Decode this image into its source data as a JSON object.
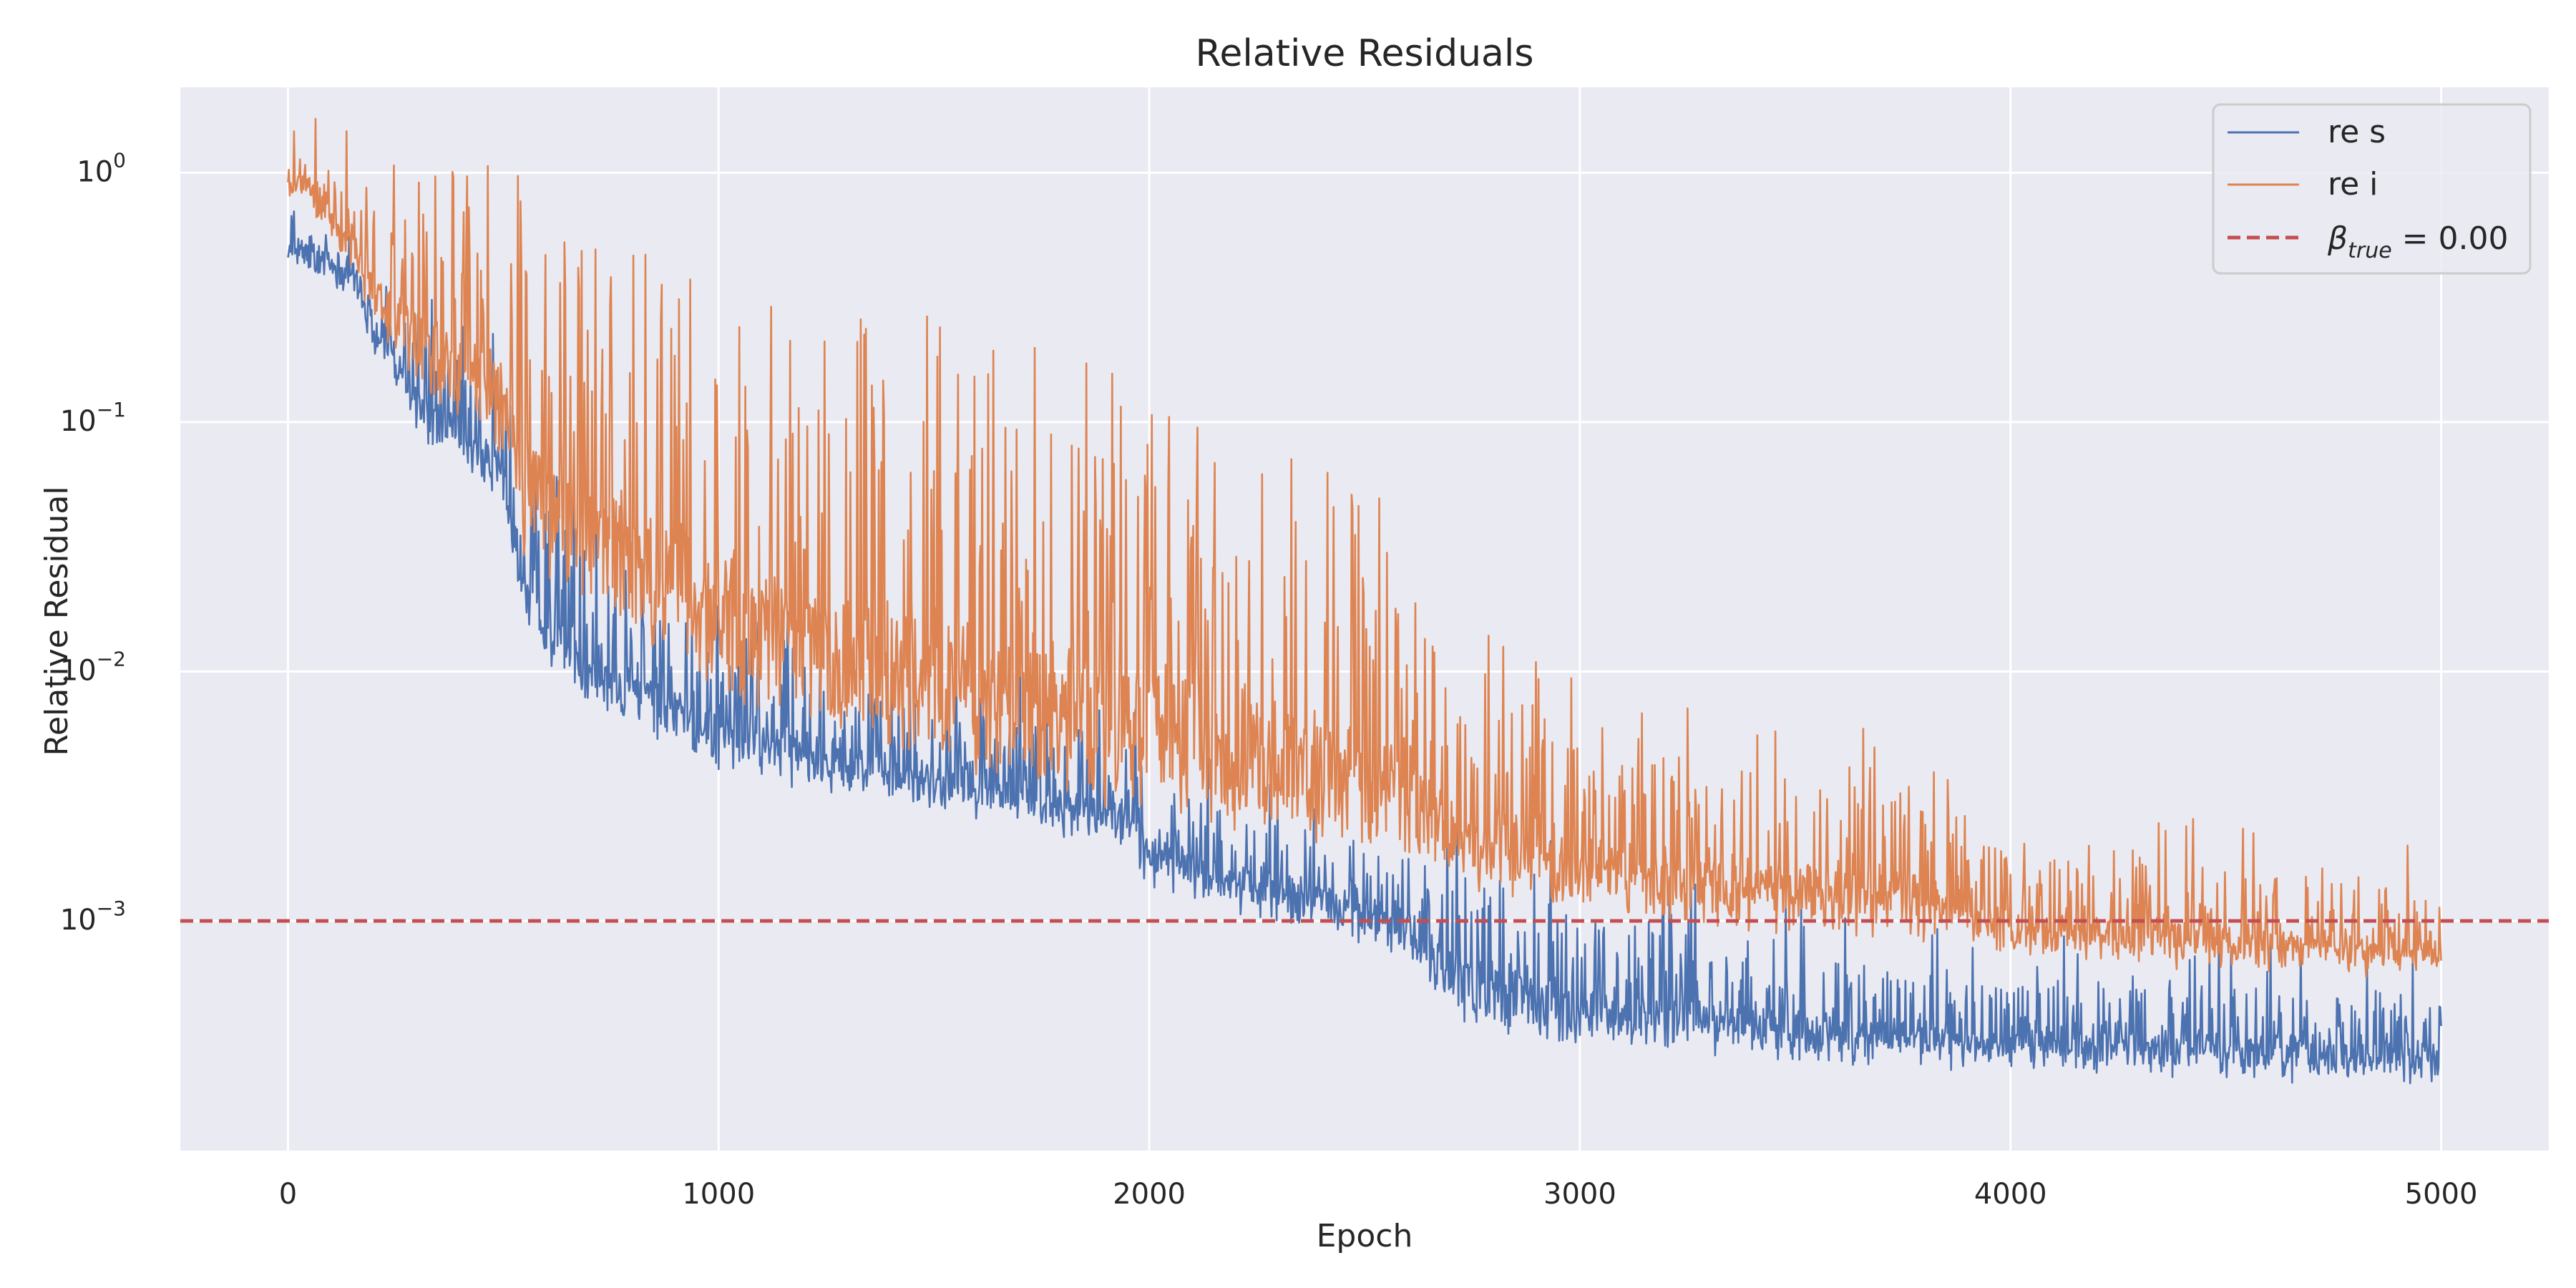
{
  "chart_data": {
    "type": "line",
    "title": "Relative Residuals",
    "xlabel": "Epoch",
    "ylabel": "Relative Residual",
    "yscale": "log",
    "xlim": [
      -250,
      5250
    ],
    "ylim": [
      0.00012,
      2.2
    ],
    "x_ticks": [
      0,
      1000,
      2000,
      3000,
      4000,
      5000
    ],
    "y_ticks": [
      {
        "value": 1,
        "label": "10^0"
      },
      {
        "value": 0.1,
        "label": "10^−1"
      },
      {
        "value": 0.01,
        "label": "10^−2"
      },
      {
        "value": 0.001,
        "label": "10^−3"
      }
    ],
    "grid": true,
    "legend_position": "top-right",
    "series": [
      {
        "name": "re s",
        "color": "#4c72b0",
        "envelope": {
          "x": [
            0,
            50,
            100,
            150,
            200,
            250,
            300,
            400,
            500,
            550,
            700,
            900,
            1000,
            1200,
            1400,
            1600,
            1800,
            1950,
            2000,
            2200,
            2400,
            2600,
            2700,
            2900,
            3000,
            3200,
            3500,
            4000,
            4500,
            5000
          ],
          "base": [
            0.45,
            0.42,
            0.4,
            0.35,
            0.2,
            0.15,
            0.1,
            0.07,
            0.05,
            0.015,
            0.008,
            0.0055,
            0.0045,
            0.0038,
            0.0032,
            0.0028,
            0.0024,
            0.0022,
            0.0015,
            0.0012,
            0.001,
            0.0008,
            0.00045,
            0.00035,
            0.00035,
            0.00033,
            0.0003,
            0.00028,
            0.00026,
            0.00025
          ],
          "peak": [
            0.8,
            0.6,
            0.55,
            0.6,
            0.35,
            0.3,
            0.25,
            0.2,
            0.15,
            0.06,
            0.04,
            0.02,
            0.015,
            0.012,
            0.009,
            0.008,
            0.007,
            0.006,
            0.004,
            0.003,
            0.0025,
            0.002,
            0.0018,
            0.0015,
            0.0012,
            0.0011,
            0.0008,
            0.0006,
            0.0006,
            0.0005
          ]
        }
      },
      {
        "name": "re i",
        "color": "#dd8452",
        "envelope": {
          "x": [
            0,
            50,
            100,
            150,
            200,
            250,
            300,
            400,
            500,
            550,
            700,
            900,
            1000,
            1200,
            1400,
            1600,
            1800,
            1950,
            2000,
            2200,
            2400,
            2600,
            2700,
            2900,
            3000,
            3200,
            3500,
            3700,
            4000,
            4500,
            5000
          ],
          "base": [
            0.85,
            0.8,
            0.6,
            0.45,
            0.25,
            0.2,
            0.15,
            0.1,
            0.08,
            0.03,
            0.02,
            0.012,
            0.008,
            0.006,
            0.005,
            0.004,
            0.0035,
            0.003,
            0.0032,
            0.0025,
            0.0022,
            0.002,
            0.0016,
            0.0013,
            0.0012,
            0.0011,
            0.001,
            0.00095,
            0.0008,
            0.0007,
            0.00065
          ],
          "peak": [
            1.4,
            1.1,
            1.2,
            1.2,
            0.9,
            0.8,
            0.8,
            1.0,
            0.8,
            0.6,
            0.45,
            0.35,
            0.3,
            0.2,
            0.25,
            0.15,
            0.13,
            0.1,
            0.09,
            0.07,
            0.05,
            0.03,
            0.012,
            0.008,
            0.006,
            0.005,
            0.004,
            0.004,
            0.002,
            0.0018,
            0.0015
          ]
        }
      },
      {
        "name": "β_true = 0.00",
        "color": "#c44e52",
        "style": "dashed",
        "y": 0.001
      }
    ],
    "legend": [
      {
        "label": "re s"
      },
      {
        "label": "re i"
      },
      {
        "label_main": "β",
        "label_sub": "true",
        "label_rest": " = 0.00"
      }
    ]
  }
}
